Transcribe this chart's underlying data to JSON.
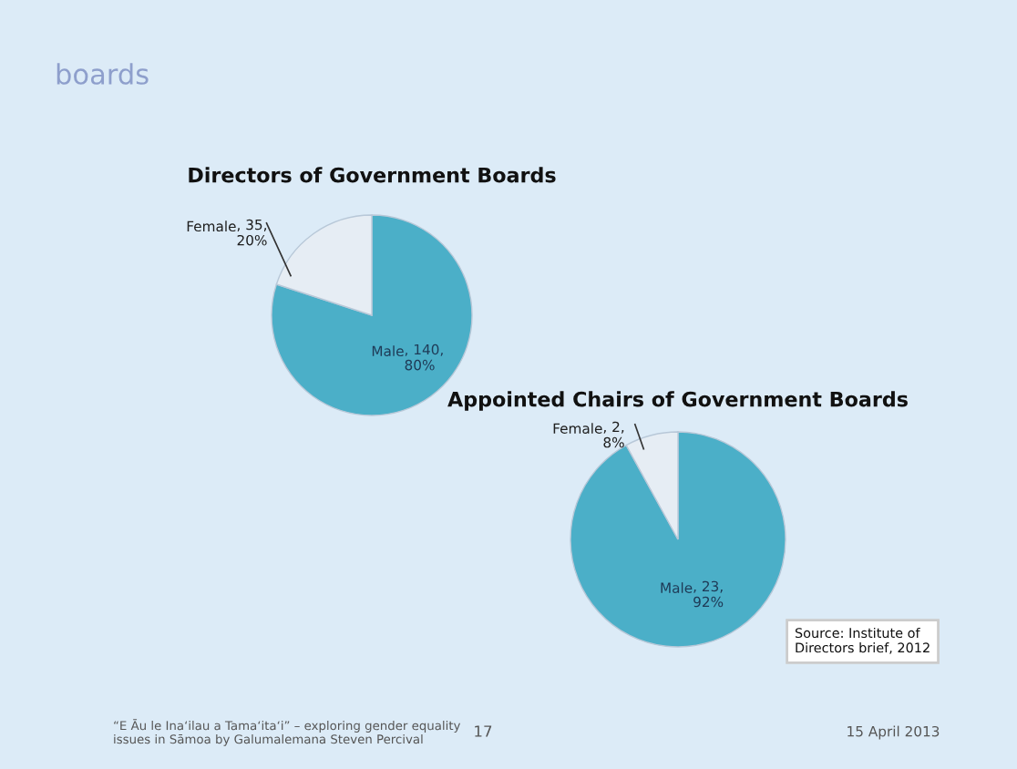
{
  "chart_data": [
    {
      "type": "pie",
      "title": "Directors of Government Boards",
      "categories": [
        "Male",
        "Female"
      ],
      "values": [
        140,
        35
      ],
      "colors": [
        "#4bafc8",
        "#e6edf4"
      ],
      "value_labels": [
        ", 140,\n80%",
        ", 35,\n20%"
      ],
      "annotations": [
        "boards",
        "“E Āu le Ina‘ilau a Tama‘ita‘i” – exploring gender equality\nissues in Sāmoa by Galumalemana Steven Percival",
        "17",
        "15 April 2013"
      ]
    },
    {
      "type": "pie",
      "title": "Appointed Chairs of Government Boards",
      "categories": [
        "Male",
        "Female"
      ],
      "values": [
        23,
        2
      ],
      "colors": [
        "#4bafc8",
        "#e6edf4"
      ],
      "value_labels": [
        ", 23,\n92%",
        ", 2,\n8%"
      ],
      "annotations": [
        "Source: Institute of\nDirectors brief, 2012"
      ]
    }
  ]
}
